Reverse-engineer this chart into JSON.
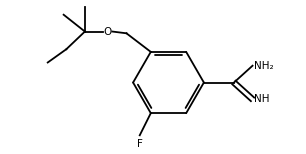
{
  "background_color": "#ffffff",
  "line_color": "#000000",
  "text_color": "#000000",
  "label_F": "F",
  "label_O": "O",
  "label_NH2": "NH₂",
  "label_NH": "NH",
  "figsize": [
    3.06,
    1.54
  ],
  "dpi": 100
}
